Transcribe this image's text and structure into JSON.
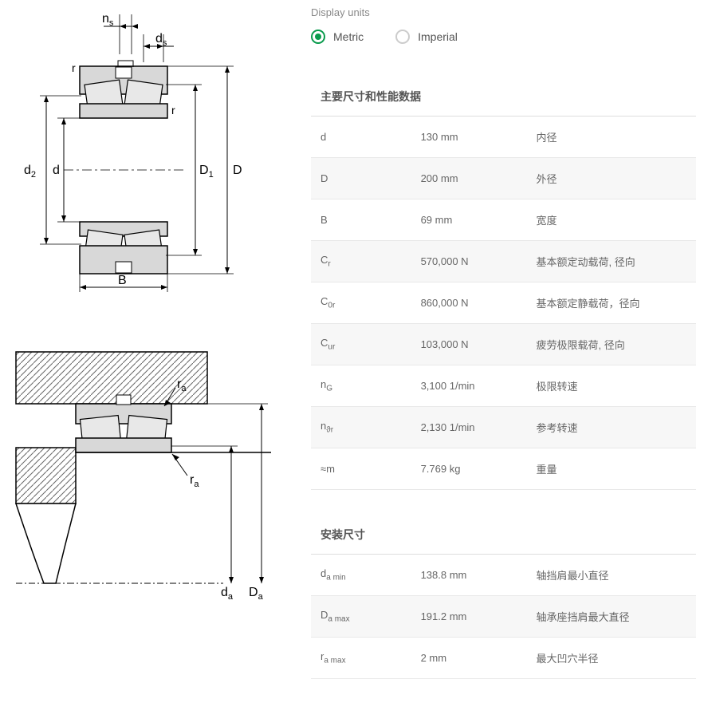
{
  "units": {
    "label": "Display units",
    "options": {
      "metric": "Metric",
      "imperial": "Imperial"
    },
    "selected": "metric"
  },
  "sections": [
    {
      "title": "主要尺寸和性能数据",
      "rows": [
        {
          "sym": "d",
          "sub": "",
          "val": "130 mm",
          "desc": "内径"
        },
        {
          "sym": "D",
          "sub": "",
          "val": "200 mm",
          "desc": "外径"
        },
        {
          "sym": "B",
          "sub": "",
          "val": "69 mm",
          "desc": "宽度"
        },
        {
          "sym": "C",
          "sub": "r",
          "val": "570,000 N",
          "desc": "基本额定动载荷, 径向"
        },
        {
          "sym": "C",
          "sub": "0r",
          "val": "860,000 N",
          "desc": "基本额定静载荷，径向"
        },
        {
          "sym": "C",
          "sub": "ur",
          "val": "103,000 N",
          "desc": "疲劳极限载荷, 径向"
        },
        {
          "sym": "n",
          "sub": "G",
          "val": "3,100 1/min",
          "desc": "极限转速"
        },
        {
          "sym": "n",
          "sub": "ϑr",
          "val": "2,130 1/min",
          "desc": "参考转速"
        },
        {
          "sym": "≈m",
          "sub": "",
          "val": "7.769 kg",
          "desc": "重量"
        }
      ]
    },
    {
      "title": "安装尺寸",
      "rows": [
        {
          "sym": "d",
          "sub": "a min",
          "val": "138.8 mm",
          "desc": "轴挡肩最小直径"
        },
        {
          "sym": "D",
          "sub": "a max",
          "val": "191.2 mm",
          "desc": "轴承座挡肩最大直径"
        },
        {
          "sym": "r",
          "sub": "a max",
          "val": "2 mm",
          "desc": "最大凹穴半径"
        }
      ]
    }
  ],
  "diagram1": {
    "labels": {
      "ns": "n",
      "ns_sub": "s",
      "ds": "d",
      "ds_sub": "s",
      "r1": "r",
      "r2": "r",
      "d2": "d",
      "d2_sub": "2",
      "d": "d",
      "D1": "D",
      "D1_sub": "1",
      "D": "D",
      "B": "B"
    },
    "colors": {
      "stroke": "#000000",
      "fill_gray": "#d0d0d0",
      "hatch": "#888888",
      "bg": "#ffffff"
    }
  },
  "diagram2": {
    "labels": {
      "ra1": "r",
      "ra1_sub": "a",
      "ra2": "r",
      "ra2_sub": "a",
      "da": "d",
      "da_sub": "a",
      "Da": "D",
      "Da_sub": "a"
    },
    "colors": {
      "stroke": "#000000",
      "hatch": "#888888"
    }
  }
}
